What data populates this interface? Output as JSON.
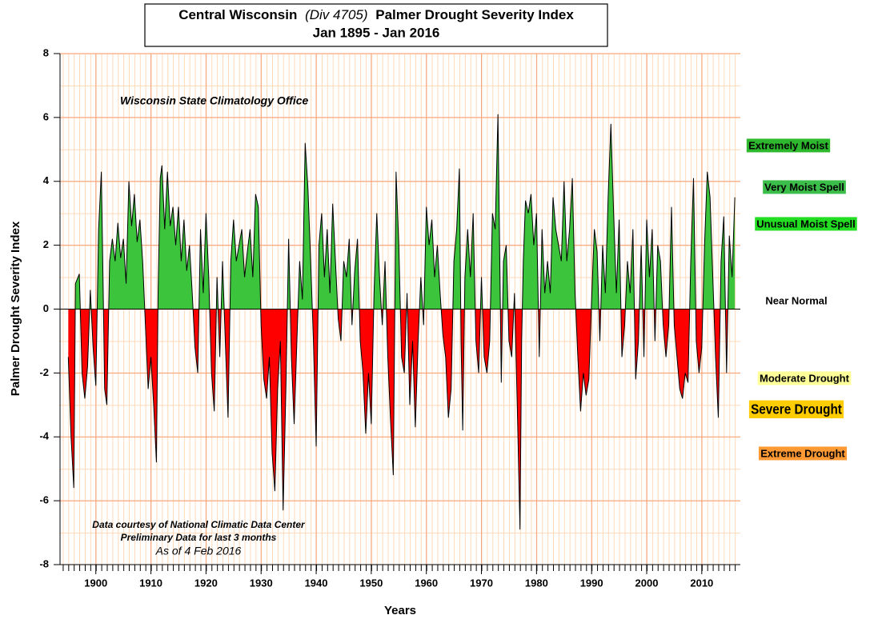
{
  "chart_data": {
    "type": "area",
    "title_parts": [
      "Central Wisconsin",
      "(Div 4705)",
      "Palmer Drought Severity Index"
    ],
    "subtitle": "Jan 1895 - Jan 2016",
    "ylabel": "Palmer Drought Severity Index",
    "xlabel": "Years",
    "source": "Wisconsin State Climatology Office",
    "notes": [
      "Data courtesy of National Climatic Data Center",
      "Preliminary Data for last 3 months"
    ],
    "as_of": "As of 4 Feb 2016",
    "positive_color": "#3cc43c",
    "negative_color": "#ff0000",
    "line_color": "#000000",
    "grid": true,
    "xlim": [
      1893.5,
      2017
    ],
    "ylim": [
      -8,
      8
    ],
    "xticks": [
      1900,
      1910,
      1920,
      1930,
      1940,
      1950,
      1960,
      1970,
      1980,
      1990,
      2000,
      2010
    ],
    "yticks": [
      -8,
      -6,
      -4,
      -2,
      0,
      2,
      4,
      6,
      8
    ],
    "classes": [
      {
        "text": "Extremely Moist",
        "color": "#2db82d"
      },
      {
        "text": "Very Moist Spell",
        "color": "#3cbf4a"
      },
      {
        "text": "Unusual Moist Spell",
        "color": "#22dd22"
      },
      {
        "text": "Near Normal",
        "color": "#ffffff"
      },
      {
        "text": "Moderate Drought",
        "color": "#ffff99"
      },
      {
        "text": "Severe Drought",
        "color": "#ffcc00"
      },
      {
        "text": "Extreme Drought",
        "color": "#ff9933"
      }
    ],
    "x": [
      1895,
      1895.5,
      1896,
      1896.3,
      1897,
      1897.5,
      1898,
      1898.5,
      1899,
      1899.5,
      1900,
      1900.5,
      1901,
      1901.3,
      1901.6,
      1902,
      1902.5,
      1903,
      1903.5,
      1904,
      1904.5,
      1905,
      1905.5,
      1906,
      1906.5,
      1907,
      1907.5,
      1908,
      1908.5,
      1909,
      1909.5,
      1910,
      1910.5,
      1911,
      1911.3,
      1911.7,
      1912,
      1912.5,
      1913,
      1913.5,
      1914,
      1914.5,
      1915,
      1915.5,
      1916,
      1916.5,
      1917,
      1917.5,
      1918,
      1918.5,
      1919,
      1919.5,
      1920,
      1920.5,
      1921,
      1921.5,
      1922,
      1922.5,
      1923,
      1923.5,
      1924,
      1924.5,
      1925,
      1925.5,
      1926,
      1926.5,
      1927,
      1927.5,
      1928,
      1928.5,
      1929,
      1929.5,
      1930,
      1930.5,
      1931,
      1931.5,
      1932,
      1932.5,
      1933,
      1933.5,
      1934,
      1934.5,
      1935,
      1935.5,
      1936,
      1936.5,
      1937,
      1937.5,
      1938,
      1938.5,
      1939,
      1939.5,
      1940,
      1940.5,
      1941,
      1941.5,
      1942,
      1942.5,
      1943,
      1943.5,
      1944,
      1944.5,
      1945,
      1945.5,
      1946,
      1946.5,
      1947,
      1947.5,
      1948,
      1948.5,
      1949,
      1949.5,
      1950,
      1950.5,
      1951,
      1951.5,
      1952,
      1952.5,
      1953,
      1953.5,
      1954,
      1954.5,
      1955,
      1955.5,
      1956,
      1956.5,
      1957,
      1957.5,
      1958,
      1958.5,
      1959,
      1959.5,
      1960,
      1960.5,
      1961,
      1961.5,
      1962,
      1962.5,
      1963,
      1963.5,
      1964,
      1964.5,
      1965,
      1965.5,
      1966,
      1966.3,
      1966.6,
      1967,
      1967.5,
      1968,
      1968.5,
      1969,
      1969.5,
      1970,
      1970.5,
      1971,
      1971.5,
      1972,
      1972.5,
      1973,
      1973.3,
      1973.6,
      1974,
      1974.5,
      1975,
      1975.5,
      1976,
      1976.5,
      1977,
      1977.3,
      1977.6,
      1978,
      1978.5,
      1979,
      1979.5,
      1980,
      1980.5,
      1981,
      1981.5,
      1982,
      1982.5,
      1983,
      1983.5,
      1984,
      1984.5,
      1985,
      1985.5,
      1986,
      1986.5,
      1987,
      1987.5,
      1988,
      1988.5,
      1989,
      1989.5,
      1990,
      1990.5,
      1991,
      1991.5,
      1992,
      1992.5,
      1993,
      1993.5,
      1994,
      1994.5,
      1995,
      1995.5,
      1996,
      1996.5,
      1997,
      1997.5,
      1998,
      1998.5,
      1999,
      1999.5,
      2000,
      2000.5,
      2001,
      2001.5,
      2002,
      2002.5,
      2003,
      2003.5,
      2004,
      2004.5,
      2005,
      2005.5,
      2006,
      2006.5,
      2007,
      2007.5,
      2008,
      2008.5,
      2009,
      2009.5,
      2010,
      2010.5,
      2011,
      2011.5,
      2012,
      2012.5,
      2013,
      2013.5,
      2014,
      2014.5,
      2015,
      2015.5,
      2016
    ],
    "values": [
      -1.5,
      -4,
      -5.6,
      0.8,
      1.1,
      -2,
      -2.8,
      -1.8,
      0.6,
      -1.2,
      -2.4,
      2.5,
      4.3,
      1,
      -2.5,
      -3,
      1.5,
      2.2,
      1.5,
      2.7,
      1.6,
      2.2,
      0.8,
      4,
      2.6,
      3.6,
      2.1,
      2.8,
      1.5,
      -0.5,
      -2.5,
      -1.5,
      -3,
      -4.8,
      0.5,
      4.1,
      4.5,
      2.5,
      4.3,
      2.6,
      3.2,
      2,
      3.2,
      1.5,
      2.8,
      1.2,
      2,
      0.5,
      -1.2,
      -2,
      2.5,
      0.5,
      3,
      1,
      -2,
      -3.2,
      1,
      -1.5,
      1.5,
      -1,
      -3.4,
      1.5,
      2.8,
      1.5,
      2,
      2.5,
      1,
      1.8,
      2.5,
      1,
      3.6,
      3.2,
      -0.5,
      -2.2,
      -2.8,
      -1.5,
      -4.5,
      -5.7,
      -2.5,
      -1,
      -6.3,
      -2.5,
      2.2,
      -1.5,
      -3.6,
      -1,
      1.5,
      0.3,
      5.2,
      3.8,
      1.5,
      -1,
      -4.3,
      2,
      3,
      1,
      2.5,
      0.5,
      3.3,
      1.5,
      -0.3,
      -1,
      1.5,
      1,
      2.2,
      -0.5,
      1.2,
      2.2,
      -1,
      -2,
      -3.9,
      -2,
      -3.6,
      0.5,
      3,
      1,
      -0.5,
      1.5,
      -1.5,
      -3.5,
      -5.2,
      4.3,
      2,
      -1.5,
      -2,
      0.5,
      -3,
      -1,
      -3.7,
      -1,
      1,
      -0.5,
      3.2,
      2,
      2.8,
      1,
      2,
      0.5,
      -0.8,
      -1.5,
      -3.4,
      -2.5,
      1.5,
      2.5,
      4.4,
      -1,
      -3.8,
      1,
      2.5,
      1,
      3,
      -1,
      -2,
      1,
      -1.5,
      -2,
      -1,
      3,
      2.5,
      6.1,
      2,
      -2.3,
      1.5,
      2,
      -1,
      -1.5,
      0.5,
      -3,
      -6.9,
      -1,
      1.5,
      3.4,
      3,
      3.6,
      2,
      3,
      -1.5,
      2.5,
      0.5,
      1.5,
      0.5,
      3.5,
      2.5,
      2,
      1.5,
      4,
      1.5,
      2.5,
      4.1,
      0.5,
      -1.5,
      -3.2,
      -2,
      -2.7,
      -2.2,
      0.3,
      2.5,
      1.8,
      -1,
      2,
      0.5,
      3.5,
      5.8,
      3,
      0.5,
      2.8,
      -1.5,
      -0.5,
      1.5,
      0.5,
      2.5,
      -2.2,
      -1,
      2,
      -1.5,
      2.8,
      1,
      2.5,
      -1,
      2,
      1.5,
      -0.5,
      -1.5,
      -0.5,
      3.2,
      -0.5,
      -1.5,
      -2.5,
      -2.8,
      -2,
      -2.3,
      1.5,
      4.1,
      -1,
      -2,
      -1.2,
      2,
      4.3,
      3.5,
      1,
      -1.5,
      -3.4,
      1.5,
      2.9,
      -2,
      2.3,
      1,
      3.5
    ]
  }
}
